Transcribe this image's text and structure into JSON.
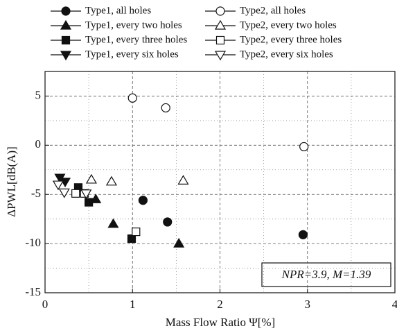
{
  "chart_data": {
    "type": "scatter",
    "xlabel": "Mass Flow Ratio Ψ[%]",
    "ylabel": "ΔPWL[dB(A)]",
    "annotation": "NPR=3.9,  M=1.39",
    "xlim": [
      0,
      4
    ],
    "xticks": [
      0,
      1,
      2,
      3,
      4
    ],
    "xminorticks": [
      0.5,
      1.5,
      2.5,
      3.5
    ],
    "ylim": [
      -15,
      7.5
    ],
    "yticks": [
      -15,
      -10,
      -5,
      0,
      5
    ],
    "yminorticks": [
      -12.5,
      -7.5,
      -2.5,
      2.5
    ],
    "grid": true,
    "series": [
      {
        "name": "Type1, all holes",
        "marker": "circle",
        "filled": true,
        "x": [
          1.12,
          1.4,
          2.95
        ],
        "values": [
          -5.6,
          -7.8,
          -9.1
        ]
      },
      {
        "name": "Type2, all holes",
        "marker": "circle",
        "filled": false,
        "x": [
          1.0,
          1.38,
          2.96
        ],
        "values": [
          4.8,
          3.8,
          -0.15
        ]
      },
      {
        "name": "Type1, every two holes",
        "marker": "triangle-up",
        "filled": true,
        "x": [
          0.58,
          0.78,
          1.53
        ],
        "values": [
          -5.5,
          -8.0,
          -10.0
        ]
      },
      {
        "name": "Type2, every two holes",
        "marker": "triangle-up",
        "filled": false,
        "x": [
          0.53,
          0.76,
          1.58
        ],
        "values": [
          -3.5,
          -3.7,
          -3.6
        ]
      },
      {
        "name": "Type1, every three holes",
        "marker": "square",
        "filled": true,
        "x": [
          0.38,
          0.5,
          0.99
        ],
        "values": [
          -4.3,
          -5.8,
          -9.5
        ]
      },
      {
        "name": "Type2, every three holes",
        "marker": "square",
        "filled": false,
        "x": [
          0.35,
          0.45,
          1.04
        ],
        "values": [
          -4.9,
          -4.9,
          -8.8
        ]
      },
      {
        "name": "Type1, every six holes",
        "marker": "triangle-down",
        "filled": true,
        "x": [
          0.17,
          0.23
        ],
        "values": [
          -3.3,
          -3.7
        ]
      },
      {
        "name": "Type2, every six holes",
        "marker": "triangle-down",
        "filled": false,
        "x": [
          0.15,
          0.22,
          0.47
        ],
        "values": [
          -4.0,
          -4.8,
          -4.9
        ]
      }
    ]
  }
}
